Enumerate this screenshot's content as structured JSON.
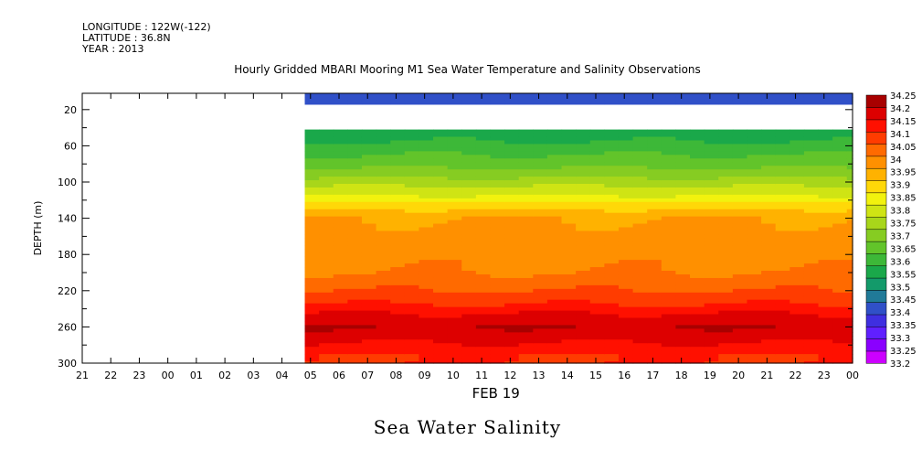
{
  "header": {
    "longitude": "LONGITUDE : 122W(-122)",
    "latitude": "LATITUDE : 36.8N",
    "year": "YEAR : 2013",
    "title": "Hourly Gridded MBARI Mooring M1 Sea Water Temperature and Salinity Observations"
  },
  "footer": {
    "subtitle": "Sea Water Salinity"
  },
  "chart_data": {
    "type": "heatmap",
    "title": "Hourly Gridded MBARI Mooring M1 Sea Water Temperature and Salinity Observations",
    "subtitle": "Sea Water Salinity",
    "xlabel": "FEB 19",
    "ylabel": "DEPTH (m)",
    "x_tick_labels": [
      "21",
      "22",
      "23",
      "00",
      "01",
      "02",
      "03",
      "04",
      "05",
      "06",
      "07",
      "08",
      "09",
      "10",
      "11",
      "12",
      "13",
      "14",
      "15",
      "16",
      "17",
      "18",
      "19",
      "20",
      "21",
      "22",
      "23",
      "00"
    ],
    "x_range_hours": [
      0,
      27
    ],
    "y_ticks": [
      20,
      60,
      100,
      140,
      180,
      220,
      260,
      300
    ],
    "ylim": [
      300,
      2
    ],
    "y_inverted": true,
    "data_start_hour": 7.8,
    "colorbar": {
      "levels": [
        33.2,
        33.25,
        33.3,
        33.35,
        33.4,
        33.45,
        33.5,
        33.55,
        33.6,
        33.65,
        33.7,
        33.75,
        33.8,
        33.85,
        33.9,
        33.95,
        34,
        34.05,
        34.1,
        34.15,
        34.2,
        34.25
      ],
      "labels": [
        "34.25",
        "34.2",
        "34.15",
        "34.1",
        "34.05",
        "34",
        "33.95",
        "33.9",
        "33.85",
        "33.8",
        "33.75",
        "33.7",
        "33.65",
        "33.6",
        "33.55",
        "33.5",
        "33.45",
        "33.4",
        "33.35",
        "33.3",
        "33.25",
        "33.2"
      ],
      "colors": [
        "#cc00ff",
        "#8a00ff",
        "#6020ff",
        "#3f2fe0",
        "#3050c8",
        "#207a98",
        "#139a6a",
        "#1aa84a",
        "#3db838",
        "#62c42a",
        "#86cc22",
        "#a8d61a",
        "#cfe414",
        "#f2f20e",
        "#ffd808",
        "#ffb200",
        "#ff9000",
        "#ff6a00",
        "#ff3c00",
        "#ff1000",
        "#dd0000",
        "#a80000"
      ]
    },
    "profile": [
      {
        "depth": 10,
        "salinity": 33.42
      },
      {
        "depth": 40,
        "salinity": 33.55
      },
      {
        "depth": 55,
        "salinity": 33.6
      },
      {
        "depth": 70,
        "salinity": 33.65
      },
      {
        "depth": 85,
        "salinity": 33.7
      },
      {
        "depth": 95,
        "salinity": 33.75
      },
      {
        "depth": 105,
        "salinity": 33.8
      },
      {
        "depth": 115,
        "salinity": 33.85
      },
      {
        "depth": 122,
        "salinity": 33.9
      },
      {
        "depth": 130,
        "salinity": 33.95
      },
      {
        "depth": 140,
        "salinity": 34.0
      },
      {
        "depth": 200,
        "salinity": 34.05
      },
      {
        "depth": 220,
        "salinity": 34.1
      },
      {
        "depth": 235,
        "salinity": 34.15
      },
      {
        "depth": 245,
        "salinity": 34.2
      },
      {
        "depth": 260,
        "salinity": 34.25
      },
      {
        "depth": 278,
        "salinity": 34.2
      },
      {
        "depth": 292,
        "salinity": 34.15
      }
    ],
    "missing_depth_range": [
      14,
      40
    ]
  }
}
